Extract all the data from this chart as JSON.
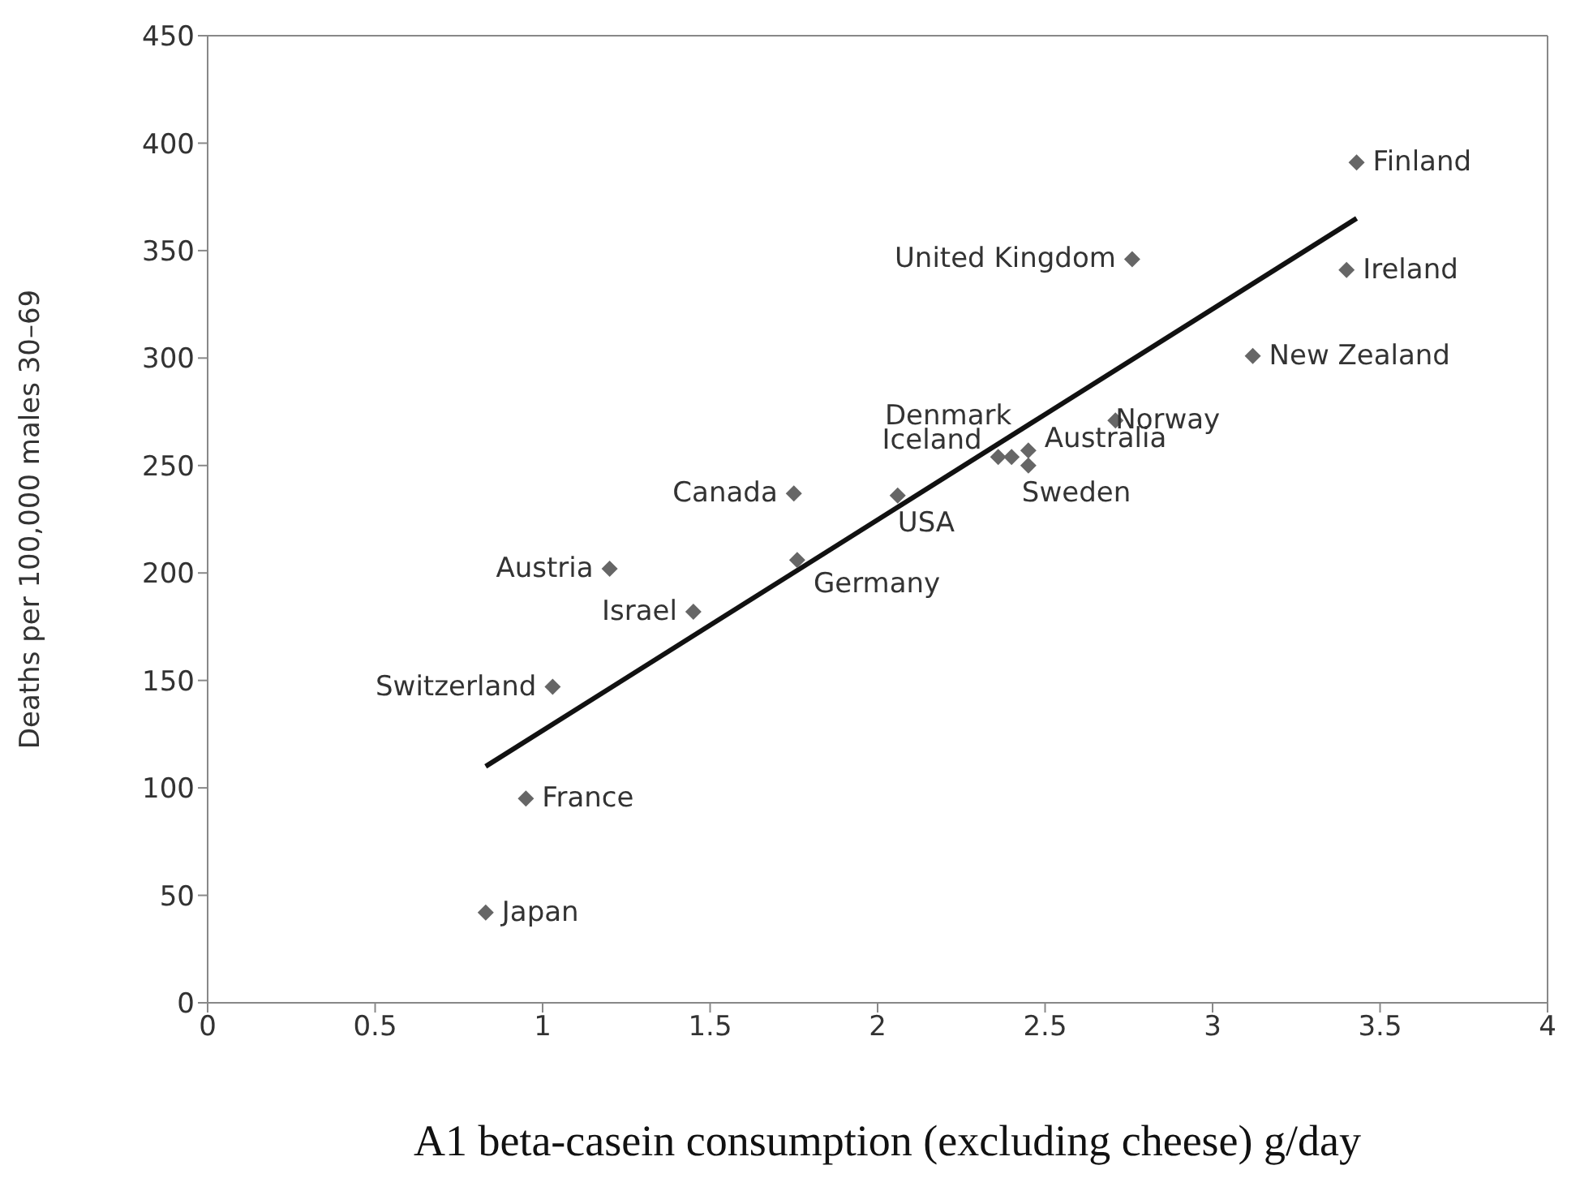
{
  "chart_data": {
    "type": "scatter",
    "xlabel": "A1 beta-casein consumption (excluding cheese) g/day",
    "ylabel": "Deaths per 100,000 males 30–69",
    "xlim": [
      0,
      4
    ],
    "xticks": [
      0,
      0.5,
      1,
      1.5,
      2,
      2.5,
      3,
      3.5,
      4
    ],
    "ylim": [
      0,
      450
    ],
    "yticks": [
      0,
      50,
      100,
      150,
      200,
      250,
      300,
      350,
      400,
      450
    ],
    "series": [
      {
        "marker": "diamond",
        "color": "#666666",
        "x": [
          0.83,
          0.95,
          1.03,
          1.45,
          1.2,
          1.76,
          1.75,
          2.06,
          2.36,
          2.4,
          2.45,
          2.45,
          2.71,
          2.76,
          3.12,
          3.4,
          3.43
        ],
        "values": [
          42,
          95,
          147,
          182,
          202,
          206,
          237,
          236,
          254,
          254,
          257,
          250,
          271,
          346,
          301,
          341,
          391
        ],
        "value_labels": [
          "Japan",
          "France",
          "Switzerland",
          "Israel",
          "Austria",
          "Germany",
          "Canada",
          "USA",
          "Iceland",
          "Denmark",
          "Australia",
          "Sweden",
          "Norway",
          "United Kingdom",
          "New Zealand",
          "Ireland",
          "Finland"
        ]
      },
      {
        "type": "line",
        "color": "#111111",
        "x": [
          0.83,
          3.43
        ],
        "values": [
          110,
          365
        ]
      }
    ]
  }
}
